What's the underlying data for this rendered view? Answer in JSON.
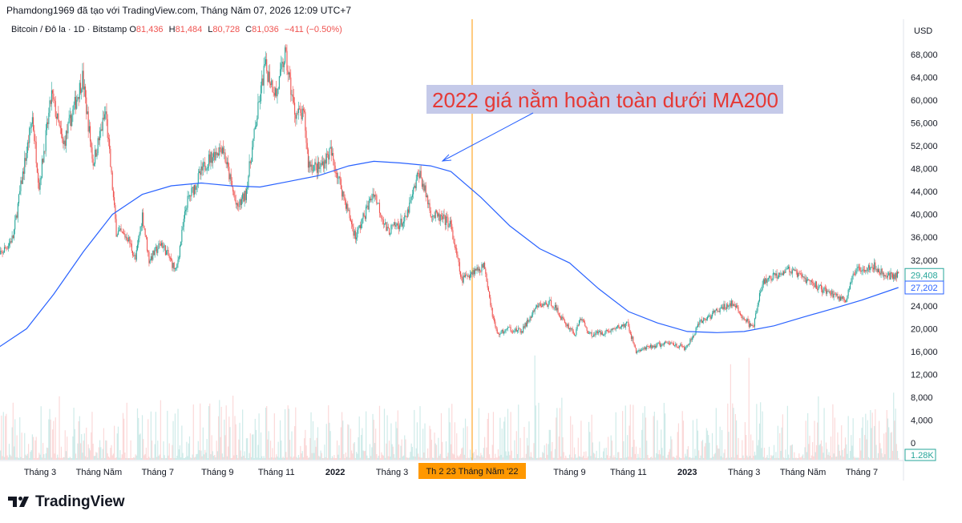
{
  "header": {
    "attribution": "Phamdong1969 đã tạo với TradingView.com, Tháng Năm 07, 2026 12:09 UTC+7"
  },
  "symbol": {
    "name": "Bitcoin / Đô la · 1D · Bitstamp",
    "o_label": "O",
    "o": "81,436",
    "h_label": "H",
    "h": "81,484",
    "l_label": "L",
    "l": "80,728",
    "c_label": "C",
    "c": "81,036",
    "change": "−411 (−0.50%)"
  },
  "watermark": {
    "text": "TradingView"
  },
  "colors": {
    "up": "#26a69a",
    "down": "#ef5350",
    "ma": "#2962ff",
    "crosshair": "#ff9800",
    "annotation_text": "#e53935",
    "annotation_bg": "#c5cae9"
  },
  "chart_data": {
    "type": "candlestick",
    "currency": "USD",
    "y_ticks": [
      "68,000",
      "64,000",
      "60,000",
      "56,000",
      "52,000",
      "48,000",
      "44,000",
      "40,000",
      "36,000",
      "32,000",
      "28,000",
      "24,000",
      "20,000",
      "16,000",
      "12,000",
      "8,000",
      "4,000",
      "0"
    ],
    "y_tick_values": [
      68000,
      64000,
      60000,
      56000,
      52000,
      48000,
      44000,
      40000,
      36000,
      32000,
      28000,
      24000,
      20000,
      16000,
      12000,
      8000,
      4000,
      0
    ],
    "x_ticks": [
      {
        "label": "Tháng 3",
        "date": "2021-03-01",
        "bold": false
      },
      {
        "label": "Tháng Năm",
        "date": "2021-05-01",
        "bold": false
      },
      {
        "label": "Tháng 7",
        "date": "2021-07-01",
        "bold": false
      },
      {
        "label": "Tháng 9",
        "date": "2021-09-01",
        "bold": false
      },
      {
        "label": "Tháng 11",
        "date": "2021-11-01",
        "bold": false
      },
      {
        "label": "2022",
        "date": "2022-01-01",
        "bold": true
      },
      {
        "label": "Tháng 3",
        "date": "2022-03-01",
        "bold": false
      },
      {
        "label": "Tháng 9",
        "date": "2022-09-01",
        "bold": false
      },
      {
        "label": "Tháng 11",
        "date": "2022-11-01",
        "bold": false
      },
      {
        "label": "2023",
        "date": "2023-01-01",
        "bold": true
      },
      {
        "label": "Tháng 3",
        "date": "2023-03-01",
        "bold": false
      },
      {
        "label": "Tháng Năm",
        "date": "2023-05-01",
        "bold": false
      },
      {
        "label": "Tháng 7",
        "date": "2023-07-01",
        "bold": false
      }
    ],
    "crosshair": {
      "date": "2022-05-23",
      "label": "Th 2 23 Tháng Năm '22"
    },
    "price_path": [
      {
        "date": "2021-01-15",
        "price": 32000
      },
      {
        "date": "2021-02-01",
        "price": 36000
      },
      {
        "date": "2021-02-10",
        "price": 46000
      },
      {
        "date": "2021-02-21",
        "price": 57000
      },
      {
        "date": "2021-02-28",
        "price": 45000
      },
      {
        "date": "2021-03-13",
        "price": 61000
      },
      {
        "date": "2021-03-25",
        "price": 52000
      },
      {
        "date": "2021-04-14",
        "price": 64000
      },
      {
        "date": "2021-04-25",
        "price": 49000
      },
      {
        "date": "2021-05-08",
        "price": 58000
      },
      {
        "date": "2021-05-19",
        "price": 37000
      },
      {
        "date": "2021-05-31",
        "price": 36000
      },
      {
        "date": "2021-06-08",
        "price": 32000
      },
      {
        "date": "2021-06-15",
        "price": 40000
      },
      {
        "date": "2021-06-22",
        "price": 32000
      },
      {
        "date": "2021-07-05",
        "price": 35000
      },
      {
        "date": "2021-07-20",
        "price": 30000
      },
      {
        "date": "2021-07-31",
        "price": 42000
      },
      {
        "date": "2021-08-14",
        "price": 47000
      },
      {
        "date": "2021-08-22",
        "price": 49500
      },
      {
        "date": "2021-09-06",
        "price": 52000
      },
      {
        "date": "2021-09-21",
        "price": 41000
      },
      {
        "date": "2021-09-30",
        "price": 43500
      },
      {
        "date": "2021-10-10",
        "price": 55000
      },
      {
        "date": "2021-10-20",
        "price": 66000
      },
      {
        "date": "2021-11-01",
        "price": 61000
      },
      {
        "date": "2021-11-10",
        "price": 68000
      },
      {
        "date": "2021-11-20",
        "price": 58000
      },
      {
        "date": "2021-11-30",
        "price": 57000
      },
      {
        "date": "2021-12-04",
        "price": 49000
      },
      {
        "date": "2021-12-15",
        "price": 48000
      },
      {
        "date": "2021-12-27",
        "price": 51000
      },
      {
        "date": "2022-01-05",
        "price": 46000
      },
      {
        "date": "2022-01-22",
        "price": 36000
      },
      {
        "date": "2022-02-10",
        "price": 44000
      },
      {
        "date": "2022-02-24",
        "price": 37000
      },
      {
        "date": "2022-03-15",
        "price": 39000
      },
      {
        "date": "2022-03-29",
        "price": 47500
      },
      {
        "date": "2022-04-11",
        "price": 40000
      },
      {
        "date": "2022-04-30",
        "price": 38500
      },
      {
        "date": "2022-05-09",
        "price": 31000
      },
      {
        "date": "2022-05-12",
        "price": 28500
      },
      {
        "date": "2022-05-23",
        "price": 30000
      },
      {
        "date": "2022-06-05",
        "price": 31000
      },
      {
        "date": "2022-06-13",
        "price": 22500
      },
      {
        "date": "2022-06-18",
        "price": 19000
      },
      {
        "date": "2022-06-30",
        "price": 20000
      },
      {
        "date": "2022-07-13",
        "price": 19500
      },
      {
        "date": "2022-07-30",
        "price": 24000
      },
      {
        "date": "2022-08-14",
        "price": 24500
      },
      {
        "date": "2022-08-25",
        "price": 21500
      },
      {
        "date": "2022-09-07",
        "price": 19000
      },
      {
        "date": "2022-09-12",
        "price": 22000
      },
      {
        "date": "2022-09-22",
        "price": 19000
      },
      {
        "date": "2022-10-10",
        "price": 19500
      },
      {
        "date": "2022-10-31",
        "price": 20800
      },
      {
        "date": "2022-11-09",
        "price": 16000
      },
      {
        "date": "2022-11-30",
        "price": 17100
      },
      {
        "date": "2022-12-15",
        "price": 17500
      },
      {
        "date": "2022-12-31",
        "price": 16500
      },
      {
        "date": "2023-01-14",
        "price": 21000
      },
      {
        "date": "2023-01-31",
        "price": 23000
      },
      {
        "date": "2023-02-16",
        "price": 24500
      },
      {
        "date": "2023-03-10",
        "price": 20000
      },
      {
        "date": "2023-03-20",
        "price": 28000
      },
      {
        "date": "2023-04-14",
        "price": 30500
      },
      {
        "date": "2023-04-30",
        "price": 29000
      },
      {
        "date": "2023-05-20",
        "price": 27000
      },
      {
        "date": "2023-06-14",
        "price": 25000
      },
      {
        "date": "2023-06-25",
        "price": 30500
      },
      {
        "date": "2023-07-13",
        "price": 31000
      },
      {
        "date": "2023-07-25",
        "price": 29300
      },
      {
        "date": "2023-08-08",
        "price": 29408
      }
    ],
    "ma200_path": [
      {
        "date": "2021-01-15",
        "price": 16500
      },
      {
        "date": "2021-02-15",
        "price": 20000
      },
      {
        "date": "2021-03-15",
        "price": 26000
      },
      {
        "date": "2021-04-15",
        "price": 33500
      },
      {
        "date": "2021-05-15",
        "price": 40000
      },
      {
        "date": "2021-06-15",
        "price": 43500
      },
      {
        "date": "2021-07-15",
        "price": 45000
      },
      {
        "date": "2021-08-15",
        "price": 45500
      },
      {
        "date": "2021-09-15",
        "price": 45000
      },
      {
        "date": "2021-10-15",
        "price": 44800
      },
      {
        "date": "2021-11-15",
        "price": 45800
      },
      {
        "date": "2021-12-15",
        "price": 46800
      },
      {
        "date": "2022-01-15",
        "price": 48500
      },
      {
        "date": "2022-02-10",
        "price": 49300
      },
      {
        "date": "2022-03-10",
        "price": 49000
      },
      {
        "date": "2022-04-10",
        "price": 48500
      },
      {
        "date": "2022-05-01",
        "price": 47500
      },
      {
        "date": "2022-06-01",
        "price": 43000
      },
      {
        "date": "2022-07-01",
        "price": 38000
      },
      {
        "date": "2022-08-01",
        "price": 34000
      },
      {
        "date": "2022-09-01",
        "price": 31500
      },
      {
        "date": "2022-10-01",
        "price": 27000
      },
      {
        "date": "2022-11-01",
        "price": 23000
      },
      {
        "date": "2022-12-01",
        "price": 21000
      },
      {
        "date": "2023-01-01",
        "price": 19500
      },
      {
        "date": "2023-02-01",
        "price": 19300
      },
      {
        "date": "2023-03-01",
        "price": 19500
      },
      {
        "date": "2023-04-01",
        "price": 20500
      },
      {
        "date": "2023-05-01",
        "price": 22000
      },
      {
        "date": "2023-06-01",
        "price": 23500
      },
      {
        "date": "2023-07-01",
        "price": 25000
      },
      {
        "date": "2023-08-08",
        "price": 27202
      }
    ],
    "last_price": {
      "value": 29408,
      "label": "29,408"
    },
    "ma200_last": {
      "value": 27202,
      "label": "27,202"
    },
    "volume_label": "1.28K",
    "annotation": "2022 giá nằm hoàn toàn dưới MA200"
  }
}
